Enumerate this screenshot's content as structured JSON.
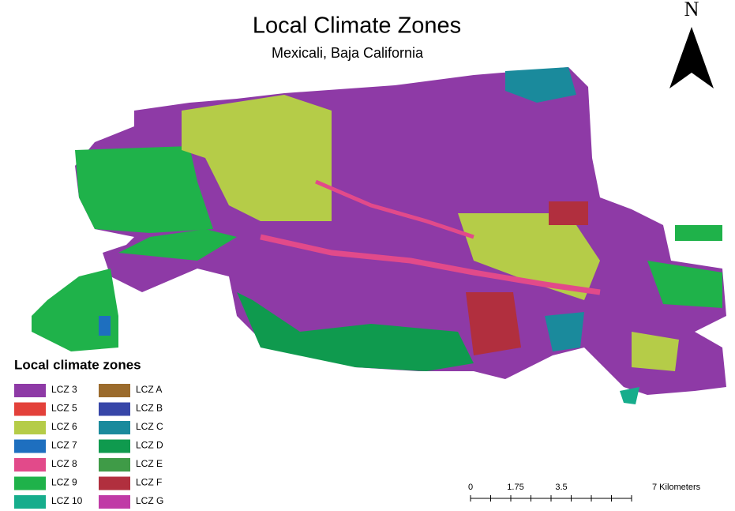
{
  "title": "Local Climate Zones",
  "subtitle": "Mexicali, Baja California",
  "north_arrow": "N",
  "legend": {
    "title": "Local climate zones",
    "items": [
      {
        "name": "LCZ 3",
        "color": "#8e3aa6"
      },
      {
        "name": "LCZ 5",
        "color": "#e3413a"
      },
      {
        "name": "LCZ 6",
        "color": "#b5cc48"
      },
      {
        "name": "LCZ 7",
        "color": "#1e6fbf"
      },
      {
        "name": "LCZ 8",
        "color": "#e24a8a"
      },
      {
        "name": "LCZ 9",
        "color": "#1fb24a"
      },
      {
        "name": "LCZ 10",
        "color": "#16ad8c"
      },
      {
        "name": "LCZ A",
        "color": "#9b6b2c"
      },
      {
        "name": "LCZ B",
        "color": "#3746a8"
      },
      {
        "name": "LCZ C",
        "color": "#1a8a9c"
      },
      {
        "name": "LCZ D",
        "color": "#0f9a4e"
      },
      {
        "name": "LCZ E",
        "color": "#3f9b47"
      },
      {
        "name": "LCZ F",
        "color": "#b12f3e"
      },
      {
        "name": "LCZ G",
        "color": "#c03aa6"
      }
    ]
  },
  "scale_bar": {
    "labels": [
      "0",
      "1.75",
      "3.5",
      "7 Kilometers"
    ]
  }
}
